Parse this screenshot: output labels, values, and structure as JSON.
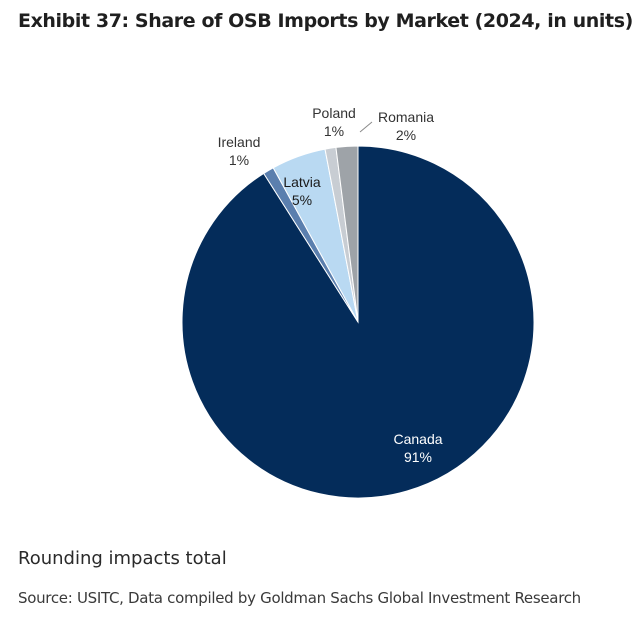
{
  "chart_data": {
    "type": "pie",
    "title": "Exhibit 37: Share of OSB Imports by Market (2024, in units)",
    "slices": [
      {
        "name": "Canada",
        "label": "91%",
        "value": 91,
        "color": "#042c5a"
      },
      {
        "name": "Ireland",
        "label": "1%",
        "value": 1,
        "color": "#5b7fae"
      },
      {
        "name": "Latvia",
        "label": "5%",
        "value": 5,
        "color": "#b9d9f2"
      },
      {
        "name": "Poland",
        "label": "1%",
        "value": 1,
        "color": "#c8cdd3"
      },
      {
        "name": "Romania",
        "label": "2%",
        "value": 2,
        "color": "#9ea3a8"
      }
    ],
    "note": "Rounding impacts total",
    "source": "Source: USITC, Data compiled by Goldman Sachs Global Investment Research"
  }
}
